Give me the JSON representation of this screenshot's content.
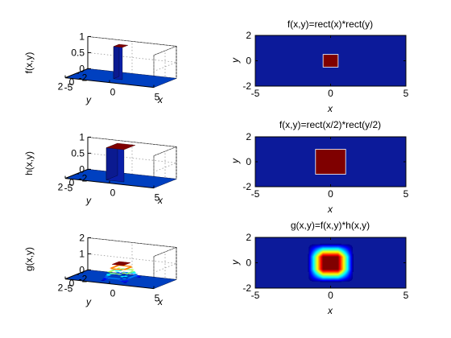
{
  "colors": {
    "low": "#0c1a9a",
    "high": "#7f0000",
    "mid": "#0040c0"
  },
  "chart_data": [
    {
      "type": "surface",
      "zlabel": "f(x,y)",
      "xlabel": "x",
      "ylabel": "y",
      "zlim": [
        0,
        1
      ],
      "zticks": [
        "0",
        "0.5",
        "1"
      ],
      "xticks": [
        "-5",
        "0",
        "5"
      ],
      "yticks": [
        "2",
        "0",
        "-2"
      ],
      "function": "rect(x)*rect(y)",
      "x_range": [
        -5,
        5
      ],
      "y_range": [
        -2,
        2
      ]
    },
    {
      "type": "heatmap",
      "title": "f(x,y)=rect(x)*rect(y)",
      "xlabel": "x",
      "ylabel": "y",
      "xlim": [
        -5,
        5
      ],
      "ylim": [
        -2,
        2
      ],
      "xticks": [
        "-5",
        "0",
        "5"
      ],
      "yticks": [
        "2",
        "0",
        "-2"
      ],
      "shape": "rect",
      "half_width": 0.5
    },
    {
      "type": "surface",
      "zlabel": "h(x,y)",
      "xlabel": "x",
      "ylabel": "y",
      "zlim": [
        0,
        1
      ],
      "zticks": [
        "0",
        "0.5",
        "1"
      ],
      "xticks": [
        "-5",
        "0",
        "5"
      ],
      "yticks": [
        "2",
        "0",
        "-2"
      ],
      "function": "rect(x/2)*rect(y/2)",
      "x_range": [
        -5,
        5
      ],
      "y_range": [
        -2,
        2
      ]
    },
    {
      "type": "heatmap",
      "title": "f(x,y)=rect(x/2)*rect(y/2)",
      "xlabel": "x",
      "ylabel": "y",
      "xlim": [
        -5,
        5
      ],
      "ylim": [
        -2,
        2
      ],
      "xticks": [
        "-5",
        "0",
        "5"
      ],
      "yticks": [
        "2",
        "0",
        "-2"
      ],
      "shape": "rect",
      "half_width": 1
    },
    {
      "type": "surface",
      "zlabel": "g(x,y)",
      "xlabel": "x",
      "ylabel": "y",
      "zlim": [
        0,
        2
      ],
      "zticks": [
        "0",
        "1",
        "2"
      ],
      "xticks": [
        "-5",
        "0",
        "5"
      ],
      "yticks": [
        "2",
        "0",
        "-2"
      ],
      "function": "f(x,y)*h(x,y)",
      "x_range": [
        -5,
        5
      ],
      "y_range": [
        -2,
        2
      ]
    },
    {
      "type": "heatmap",
      "title": "g(x,y)=f(x,y)*h(x,y)",
      "xlabel": "x",
      "ylabel": "y",
      "xlim": [
        -5,
        5
      ],
      "ylim": [
        -2,
        2
      ],
      "xticks": [
        "-5",
        "0",
        "5"
      ],
      "yticks": [
        "2",
        "0",
        "-2"
      ],
      "shape": "convolution",
      "half_width": 1.5,
      "peak": 1
    }
  ]
}
